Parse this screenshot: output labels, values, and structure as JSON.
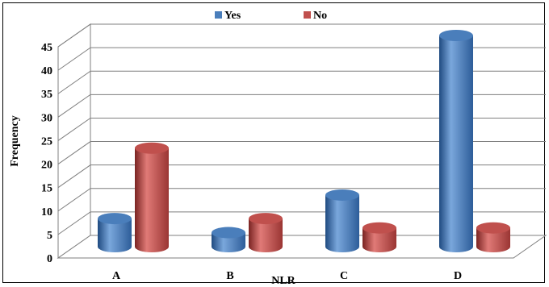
{
  "chart_data": {
    "type": "bar",
    "style": "3d-cylinder",
    "xlabel": "NLR",
    "ylabel": "Frequency",
    "categories": [
      "A",
      "B",
      "C",
      "D"
    ],
    "ylim": [
      0,
      45
    ],
    "yticks": [
      0,
      5,
      10,
      15,
      20,
      25,
      30,
      35,
      40,
      45
    ],
    "grid": true,
    "legend": "top-center",
    "series": [
      {
        "name": "Yes",
        "color": "#4a7ebb",
        "values": [
          6,
          3,
          11,
          45
        ]
      },
      {
        "name": "No",
        "color": "#c0504d",
        "values": [
          21,
          6,
          4,
          4
        ]
      }
    ]
  }
}
